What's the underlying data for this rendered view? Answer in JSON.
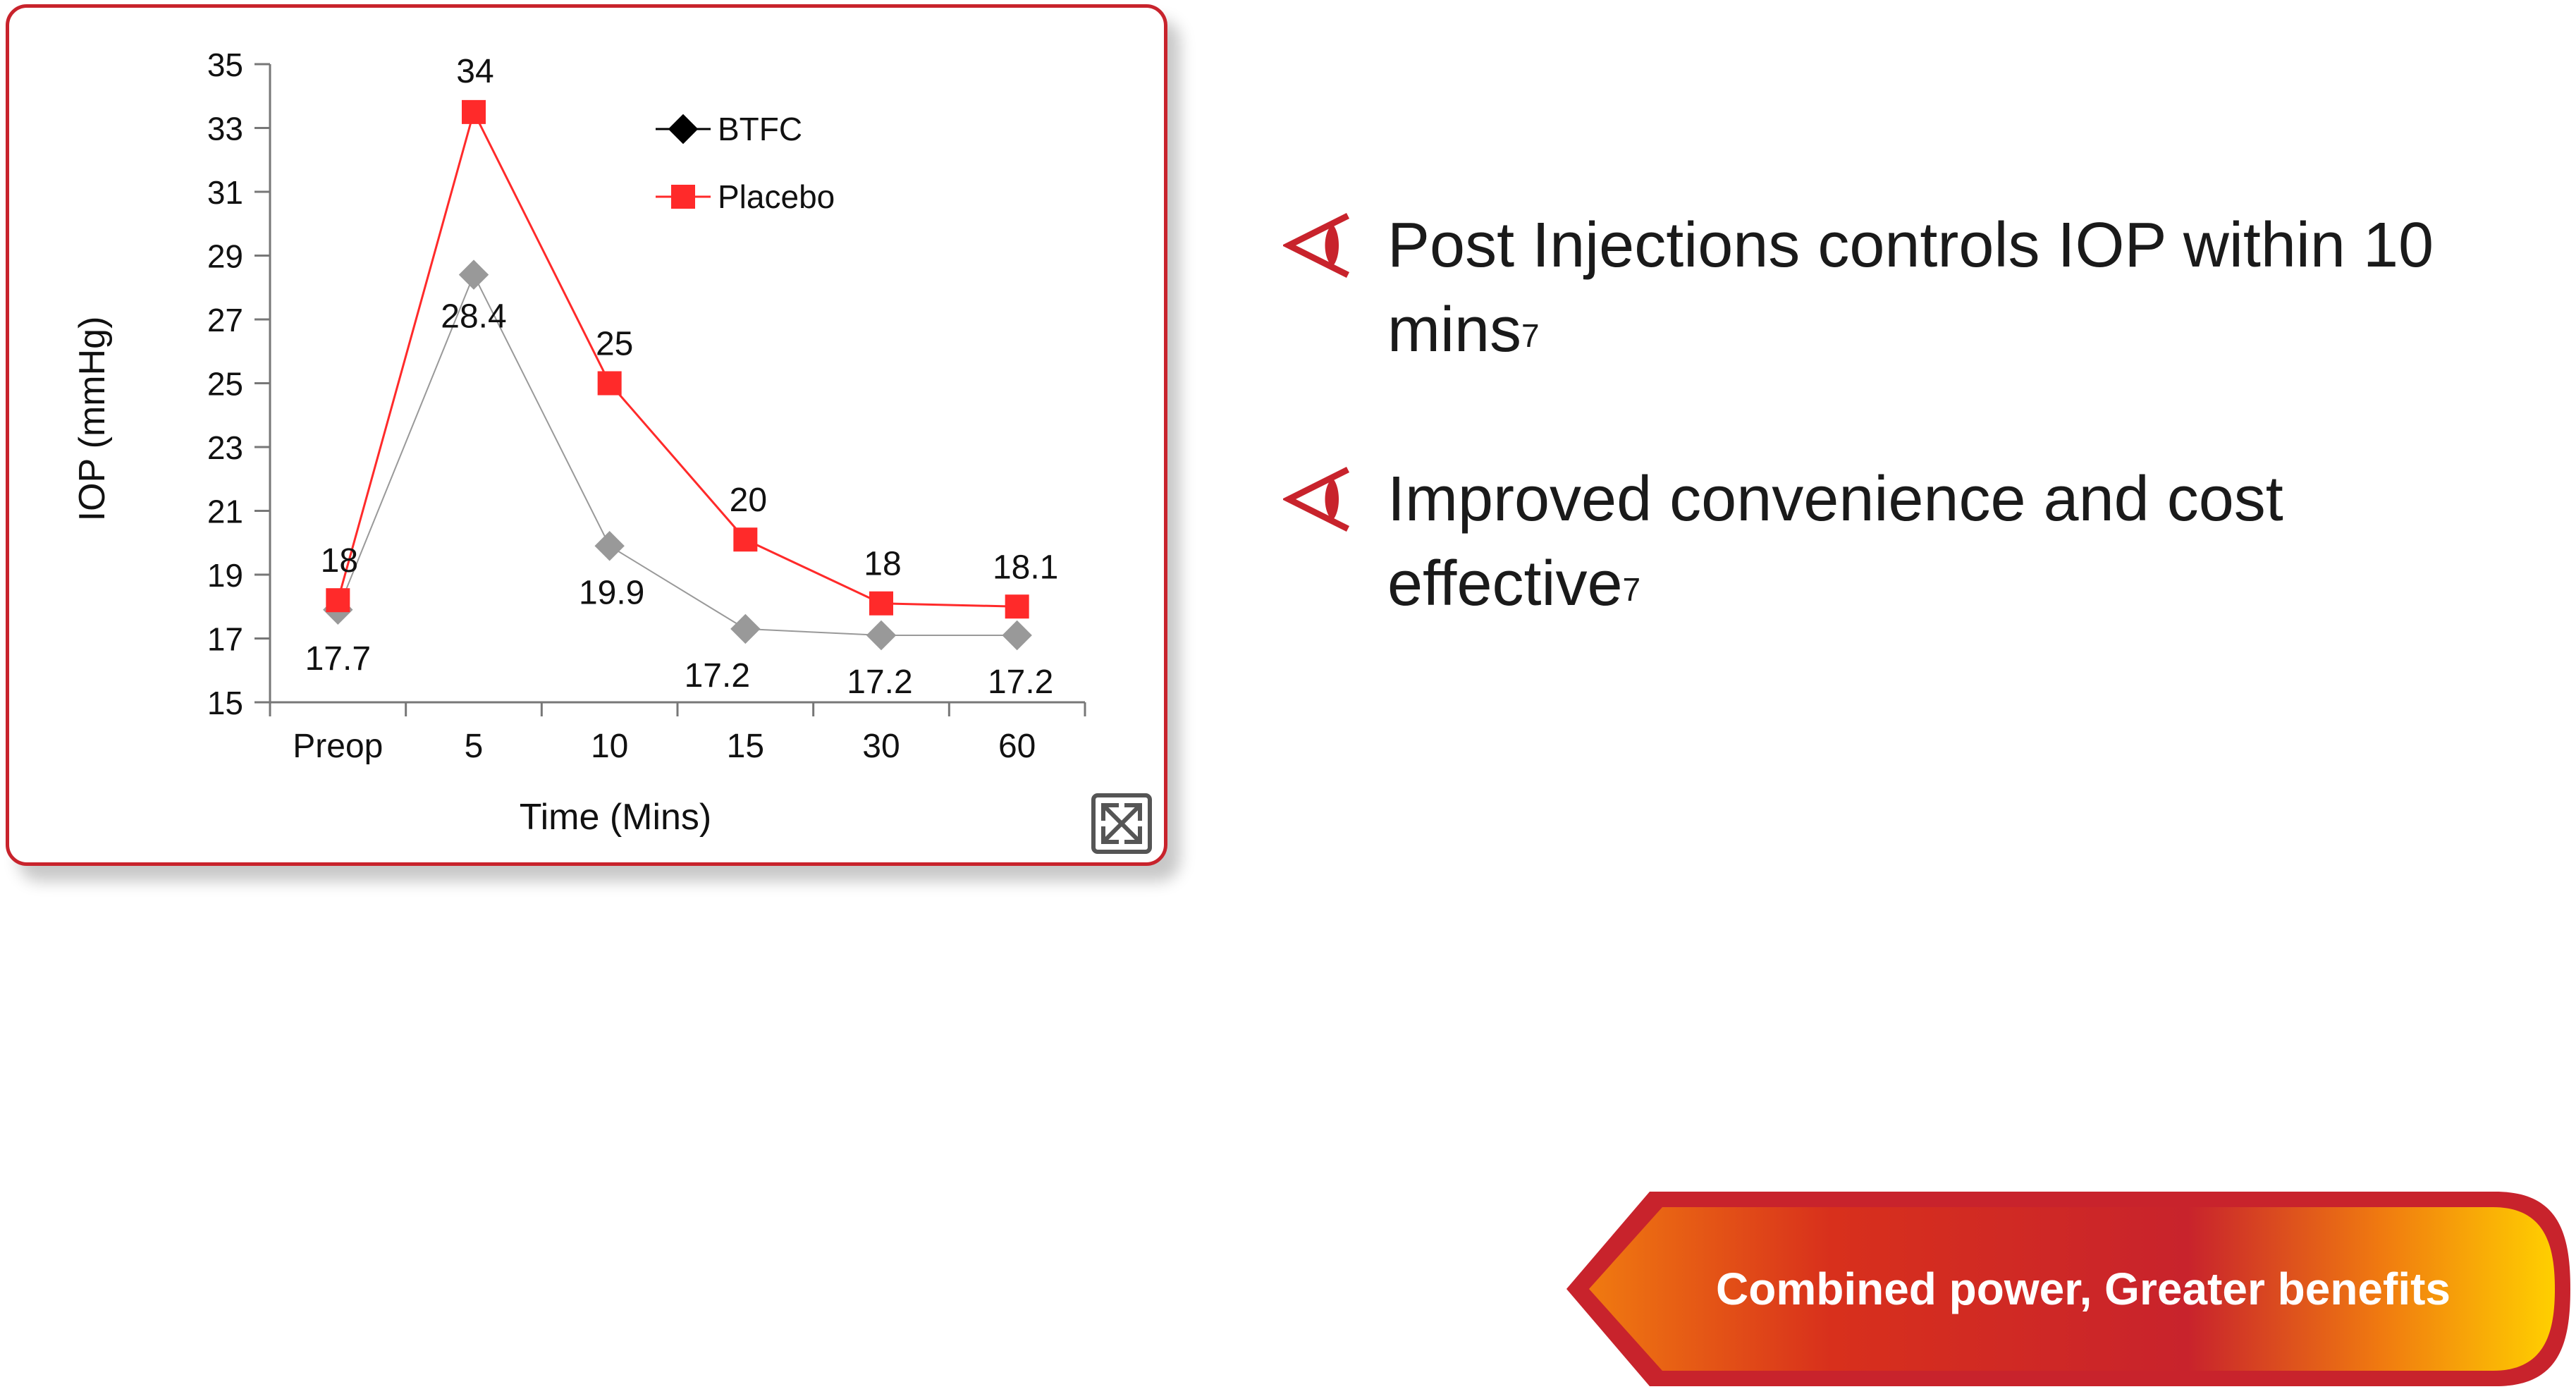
{
  "chart_data": {
    "type": "line",
    "categories": [
      "Preop",
      "5",
      "10",
      "15",
      "30",
      "60"
    ],
    "series": [
      {
        "name": "BTFC",
        "values": [
          17.7,
          28.4,
          19.9,
          17.2,
          17.2,
          17.2
        ],
        "color": "#999999",
        "marker": "diamond"
      },
      {
        "name": "Placebo",
        "values": [
          18,
          34,
          25,
          20,
          18,
          18.1
        ],
        "color": "#ff2a2a",
        "marker": "square"
      }
    ],
    "plotted_values": {
      "BTFC": [
        17.9,
        28.4,
        19.9,
        17.3,
        17.1,
        17.1
      ],
      "Placebo": [
        18.2,
        33.5,
        25,
        20.1,
        18.1,
        18
      ]
    },
    "xlabel": "Time (Mins)",
    "ylabel": "IOP (mmHg)",
    "ylim": [
      15,
      35
    ],
    "yticks": [
      15,
      17,
      19,
      21,
      23,
      25,
      27,
      29,
      31,
      33,
      35
    ],
    "grid": false,
    "legend": {
      "placement": "top-center",
      "entries": [
        "BTFC",
        "Placebo"
      ],
      "btfc_swatch_color": "#000000"
    }
  },
  "bullets": [
    {
      "text": "Post Injections controls IOP within 10 mins",
      "sup": "7",
      "icon": "eye-arrow-icon"
    },
    {
      "text": "Improved convenience and cost effective",
      "sup": "7",
      "icon": "eye-arrow-icon"
    }
  ],
  "banner": {
    "label": "Combined power, Greater benefits",
    "icon": "arrow-banner"
  },
  "expand_icon": "expand-icon",
  "colors": {
    "accent_red": "#c8232c",
    "placebo_red": "#ff2a2a",
    "btfc_gray": "#999999",
    "banner_orange": "#f07a10",
    "banner_yellow": "#ffd000"
  }
}
